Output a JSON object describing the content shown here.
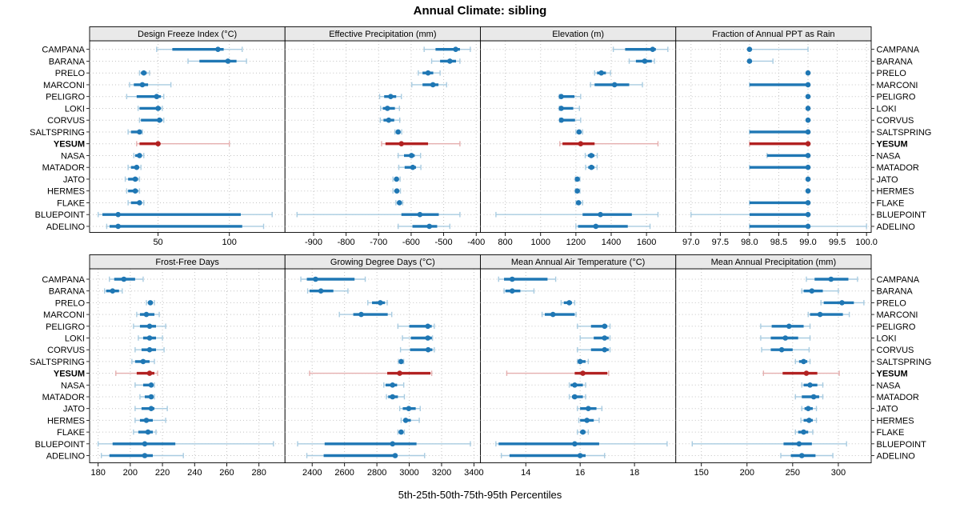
{
  "title": "Annual Climate: sibling",
  "caption": "5th-25th-50th-75th-95th Percentiles",
  "highlight_site": "YESUM",
  "percentile_labels": [
    "5th",
    "25th",
    "50th",
    "75th",
    "95th"
  ],
  "colors": {
    "series": "#1F77B4",
    "series_light": "#A9CCE1",
    "highlight": "#B22222",
    "highlight_light": "#E5AFAF",
    "header_bg": "#E9E9E9",
    "grid": "#C4C4C4",
    "border": "#000000",
    "text": "#000000"
  },
  "sites": [
    "CAMPANA",
    "BARANA",
    "PRELO",
    "MARCONI",
    "PELIGRO",
    "LOKI",
    "CORVUS",
    "SALTSPRING",
    "YESUM",
    "NASA",
    "MATADOR",
    "JATO",
    "HERMES",
    "FLAKE",
    "BLUEPOINT",
    "ADELINO"
  ],
  "chart_data": {
    "type": "dotplot-trellis",
    "layout": {
      "rows": 2,
      "cols": 4,
      "grid": "dotted",
      "site_labels": "both-sides"
    },
    "percentiles": [
      5,
      25,
      50,
      75,
      95
    ],
    "panels": [
      {
        "title": "Design Freeze Index (°C)",
        "xlim": [
          2,
          139
        ],
        "ticks": [
          50,
          100
        ],
        "tick_labels": [
          "50",
          "100"
        ],
        "values": {
          "CAMPANA": [
            49,
            60,
            92,
            96,
            109
          ],
          "BARANA": [
            71,
            79,
            99,
            105,
            112
          ],
          "PRELO": [
            37,
            38,
            40,
            42,
            44
          ],
          "MARCONI": [
            30,
            33,
            39,
            43,
            59
          ],
          "PELIGRO": [
            28,
            35,
            49,
            52,
            54
          ],
          "LOKI": [
            36,
            37,
            50,
            52,
            53
          ],
          "CORVUS": [
            37,
            38,
            51,
            53,
            54
          ],
          "SALTSPRING": [
            29,
            31,
            37,
            38,
            39
          ],
          "YESUM": [
            35,
            37,
            50,
            51,
            100
          ],
          "NASA": [
            33,
            34,
            37,
            38,
            40
          ],
          "MATADOR": [
            29,
            31,
            35,
            36,
            38
          ],
          "JATO": [
            27,
            29,
            34,
            36,
            37
          ],
          "HERMES": [
            28,
            29,
            34,
            36,
            37
          ],
          "FLAKE": [
            29,
            31,
            37,
            38,
            40
          ],
          "BLUEPOINT": [
            8,
            11,
            22,
            108,
            130
          ],
          "ADELINO": [
            14,
            16,
            22,
            109,
            124
          ]
        }
      },
      {
        "title": "Effective Precipitation (mm)",
        "xlim": [
          -988,
          -387
        ],
        "ticks": [
          -900,
          -800,
          -700,
          -600,
          -500,
          -400
        ],
        "tick_labels": [
          "-900",
          "-800",
          "-700",
          "-600",
          "-500",
          "-400"
        ],
        "values": {
          "CAMPANA": [
            -560,
            -525,
            -463,
            -450,
            -418
          ],
          "BARANA": [
            -537,
            -511,
            -481,
            -462,
            -450
          ],
          "PRELO": [
            -578,
            -565,
            -548,
            -532,
            -511
          ],
          "MARCONI": [
            -598,
            -565,
            -533,
            -516,
            -491
          ],
          "PELIGRO": [
            -697,
            -683,
            -663,
            -646,
            -630
          ],
          "LOKI": [
            -694,
            -687,
            -673,
            -650,
            -636
          ],
          "CORVUS": [
            -695,
            -685,
            -669,
            -652,
            -635
          ],
          "SALTSPRING": [
            -650,
            -646,
            -640,
            -633,
            -629
          ],
          "YESUM": [
            -691,
            -679,
            -630,
            -548,
            -450
          ],
          "NASA": [
            -640,
            -622,
            -599,
            -589,
            -571
          ],
          "MATADOR": [
            -638,
            -620,
            -595,
            -585,
            -570
          ],
          "JATO": [
            -656,
            -650,
            -645,
            -638,
            -634
          ],
          "HERMES": [
            -656,
            -650,
            -644,
            -638,
            -633
          ],
          "FLAKE": [
            -647,
            -642,
            -636,
            -630,
            -626
          ],
          "BLUEPOINT": [
            -951,
            -630,
            -573,
            -515,
            -450
          ],
          "ADELINO": [
            -640,
            -596,
            -544,
            -520,
            -481
          ]
        }
      },
      {
        "title": "Elevation (m)",
        "xlim": [
          659,
          1766
        ],
        "ticks": [
          800,
          1000,
          1200,
          1400,
          1600
        ],
        "tick_labels": [
          "800",
          "1000",
          "1200",
          "1400",
          "1600"
        ],
        "values": {
          "CAMPANA": [
            1412,
            1479,
            1635,
            1653,
            1721
          ],
          "BARANA": [
            1502,
            1540,
            1590,
            1630,
            1645
          ],
          "PRELO": [
            1306,
            1320,
            1344,
            1370,
            1396
          ],
          "MARCONI": [
            1283,
            1306,
            1419,
            1502,
            1577
          ],
          "PELIGRO": [
            1106,
            1109,
            1117,
            1192,
            1227
          ],
          "LOKI": [
            1106,
            1109,
            1117,
            1185,
            1220
          ],
          "CORVUS": [
            1108,
            1111,
            1118,
            1195,
            1227
          ],
          "SALTSPRING": [
            1200,
            1205,
            1218,
            1230,
            1238
          ],
          "YESUM": [
            1109,
            1124,
            1227,
            1306,
            1665
          ],
          "NASA": [
            1253,
            1268,
            1287,
            1305,
            1321
          ],
          "MATADOR": [
            1255,
            1270,
            1288,
            1305,
            1320
          ],
          "JATO": [
            1197,
            1200,
            1208,
            1215,
            1223
          ],
          "HERMES": [
            1197,
            1200,
            1208,
            1215,
            1223
          ],
          "FLAKE": [
            1200,
            1205,
            1215,
            1225,
            1238
          ],
          "BLUEPOINT": [
            747,
            1238,
            1339,
            1517,
            1665
          ],
          "ADELINO": [
            1200,
            1212,
            1313,
            1494,
            1620
          ]
        }
      },
      {
        "title": "Fraction of Annual PPT as Rain",
        "xlim": [
          96.74,
          100.08
        ],
        "ticks": [
          97.0,
          97.5,
          98.0,
          98.5,
          99.0,
          99.5,
          100.0
        ],
        "tick_labels": [
          "97.0",
          "97.5",
          "98.0",
          "98.5",
          "99.0",
          "99.5",
          "100.0"
        ],
        "values": {
          "CAMPANA": [
            98,
            98,
            98,
            98,
            99
          ],
          "BARANA": [
            98,
            98,
            98,
            98,
            98.4
          ],
          "PRELO": [
            99,
            99,
            99,
            99,
            99
          ],
          "MARCONI": [
            98,
            98,
            99,
            99,
            99
          ],
          "PELIGRO": [
            99,
            99,
            99,
            99,
            99
          ],
          "LOKI": [
            99,
            99,
            99,
            99,
            99
          ],
          "CORVUS": [
            99,
            99,
            99,
            99,
            99
          ],
          "SALTSPRING": [
            98,
            98,
            99,
            99,
            99
          ],
          "YESUM": [
            98,
            98,
            99,
            99,
            99
          ],
          "NASA": [
            98.3,
            98.3,
            99,
            99,
            99
          ],
          "MATADOR": [
            98,
            98,
            99,
            99,
            99
          ],
          "JATO": [
            99,
            99,
            99,
            99,
            99
          ],
          "HERMES": [
            99,
            99,
            99,
            99,
            99
          ],
          "FLAKE": [
            98,
            98,
            99,
            99,
            99
          ],
          "BLUEPOINT": [
            97,
            98,
            99,
            99,
            99
          ],
          "ADELINO": [
            98,
            98,
            99,
            99,
            100
          ]
        }
      },
      {
        "title": "Frost-Free Days",
        "xlim": [
          174.7,
          296.2
        ],
        "ticks": [
          180,
          200,
          220,
          240,
          260,
          280
        ],
        "tick_labels": [
          "180",
          "200",
          "220",
          "240",
          "260",
          "280"
        ],
        "values": {
          "CAMPANA": [
            187,
            190,
            196,
            203,
            208
          ],
          "BARANA": [
            184,
            185,
            189,
            193,
            195
          ],
          "PRELO": [
            210,
            211,
            212.5,
            214,
            215
          ],
          "MARCONI": [
            204,
            206,
            210,
            215,
            218
          ],
          "PELIGRO": [
            202,
            206,
            212,
            216,
            222
          ],
          "LOKI": [
            205,
            208,
            212,
            216,
            220
          ],
          "CORVUS": [
            203,
            207,
            212,
            216,
            221
          ],
          "SALTSPRING": [
            201,
            203,
            208,
            212,
            215
          ],
          "YESUM": [
            191,
            204,
            212,
            215,
            217
          ],
          "NASA": [
            203,
            208,
            213,
            214,
            215
          ],
          "MATADOR": [
            206,
            209,
            213,
            214,
            215
          ],
          "JATO": [
            203,
            207,
            213,
            215,
            223
          ],
          "HERMES": [
            203,
            206,
            210,
            214,
            222
          ],
          "FLAKE": [
            202,
            205,
            211,
            214,
            216
          ],
          "BLUEPOINT": [
            180,
            189,
            209,
            228,
            289
          ],
          "ADELINO": [
            182,
            187,
            209,
            214,
            233
          ]
        }
      },
      {
        "title": "Growing Degree Days (°C)",
        "xlim": [
          2232,
          3440
        ],
        "ticks": [
          2400,
          2600,
          2800,
          3000,
          3200,
          3400
        ],
        "tick_labels": [
          "2400",
          "2600",
          "2800",
          "3000",
          "3200",
          "3400"
        ],
        "values": {
          "CAMPANA": [
            2330,
            2367,
            2421,
            2662,
            2728
          ],
          "BARANA": [
            2372,
            2384,
            2454,
            2531,
            2621
          ],
          "PRELO": [
            2744,
            2770,
            2821,
            2850,
            2864
          ],
          "MARCONI": [
            2568,
            2654,
            2703,
            2867,
            2892
          ],
          "PELIGRO": [
            2930,
            3000,
            3115,
            3139,
            3155
          ],
          "LOKI": [
            2958,
            3010,
            3115,
            3140,
            3144
          ],
          "CORVUS": [
            2946,
            3005,
            3117,
            3143,
            3155
          ],
          "SALTSPRING": [
            2933,
            2940,
            2950,
            2960,
            2966
          ],
          "YESUM": [
            2384,
            2864,
            2941,
            3131,
            3139
          ],
          "NASA": [
            2843,
            2854,
            2897,
            2925,
            2966
          ],
          "MATADOR": [
            2859,
            2870,
            2897,
            2930,
            2970
          ],
          "JATO": [
            2941,
            2960,
            2997,
            3040,
            3068
          ],
          "HERMES": [
            2950,
            2965,
            2978,
            3010,
            3062
          ],
          "FLAKE": [
            2930,
            2938,
            2950,
            2962,
            2970
          ],
          "BLUEPOINT": [
            2310,
            2477,
            2897,
            3045,
            3378
          ],
          "ADELINO": [
            2367,
            2471,
            2913,
            2917,
            3095
          ]
        }
      },
      {
        "title": "Mean Annual Air Temperature (°C)",
        "xlim": [
          12.33,
          19.52
        ],
        "ticks": [
          14,
          16,
          18
        ],
        "tick_labels": [
          "14",
          "16",
          "18"
        ],
        "values": {
          "CAMPANA": [
            13.0,
            13.2,
            13.5,
            14.8,
            15.1
          ],
          "BARANA": [
            13.2,
            13.25,
            13.5,
            13.8,
            14.3
          ],
          "PRELO": [
            15.3,
            15.4,
            15.6,
            15.7,
            15.8
          ],
          "MARCONI": [
            14.6,
            14.7,
            15.0,
            15.8,
            15.85
          ],
          "PELIGRO": [
            15.9,
            16.4,
            16.9,
            17.0,
            17.1
          ],
          "LOKI": [
            16.0,
            16.5,
            16.9,
            17.05,
            17.1
          ],
          "CORVUS": [
            15.9,
            16.4,
            16.9,
            17.05,
            17.1
          ],
          "SALTSPRING": [
            15.9,
            15.95,
            16.0,
            16.2,
            16.3
          ],
          "YESUM": [
            13.3,
            15.8,
            16.1,
            17.0,
            17.05
          ],
          "NASA": [
            15.6,
            15.65,
            15.8,
            16.1,
            16.2
          ],
          "MATADOR": [
            15.6,
            15.7,
            15.8,
            16.1,
            16.2
          ],
          "JATO": [
            15.9,
            16.0,
            16.3,
            16.6,
            16.8
          ],
          "HERMES": [
            15.95,
            16.0,
            16.25,
            16.5,
            16.7
          ],
          "FLAKE": [
            15.9,
            16.0,
            16.1,
            16.2,
            16.3
          ],
          "BLUEPOINT": [
            12.9,
            13.0,
            15.8,
            16.7,
            19.2
          ],
          "ADELINO": [
            13.1,
            13.4,
            16.0,
            16.2,
            16.9
          ]
        }
      },
      {
        "title": "Mean Annual Precipitation (mm)",
        "xlim": [
          122,
          336
        ],
        "ticks": [
          150,
          200,
          250,
          300
        ],
        "tick_labels": [
          "150",
          "200",
          "250",
          "300"
        ],
        "values": {
          "CAMPANA": [
            265,
            274,
            292,
            311,
            321
          ],
          "BARANA": [
            260,
            262,
            271,
            283,
            300
          ],
          "PRELO": [
            281,
            284,
            304,
            317,
            328
          ],
          "MARCONI": [
            267,
            269,
            280,
            305,
            312
          ],
          "PELIGRO": [
            215,
            227,
            246,
            262,
            269
          ],
          "LOKI": [
            215,
            226,
            242,
            256,
            269
          ],
          "CORVUS": [
            216,
            226,
            238,
            250,
            268
          ],
          "SALTSPRING": [
            253,
            257,
            262,
            266,
            269
          ],
          "YESUM": [
            218,
            239,
            265,
            277,
            301
          ],
          "NASA": [
            260,
            262,
            269,
            277,
            283
          ],
          "MATADOR": [
            253,
            260,
            273,
            279,
            283
          ],
          "JATO": [
            260,
            263,
            267,
            272,
            276
          ],
          "HERMES": [
            259,
            262,
            268,
            272,
            276
          ],
          "FLAKE": [
            253,
            256,
            262,
            267,
            272
          ],
          "BLUEPOINT": [
            140,
            240,
            257,
            271,
            309
          ],
          "ADELINO": [
            237,
            248,
            260,
            275,
            294
          ]
        }
      }
    ]
  }
}
